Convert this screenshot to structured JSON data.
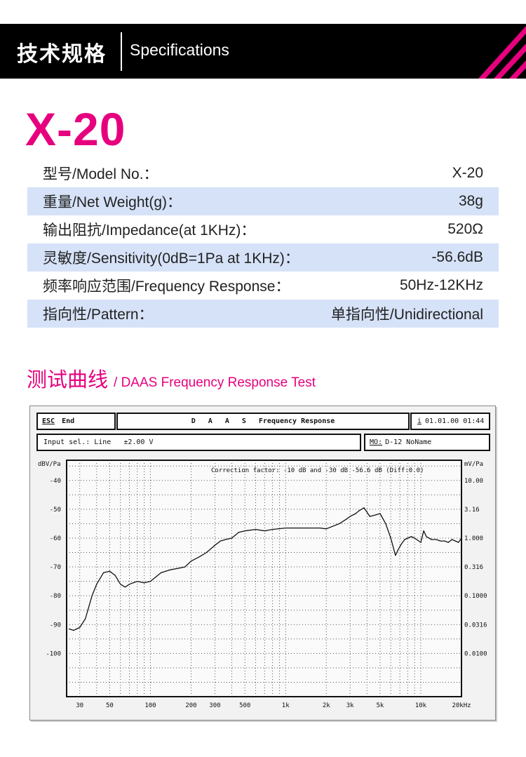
{
  "header": {
    "title_cn": "技术规格",
    "title_en": "Specifications",
    "accent_color": "#e6007e"
  },
  "model": "X-20",
  "specs": [
    {
      "label": "型号/Model No.：",
      "value": "X-20"
    },
    {
      "label": "重量/Net Weight(g)：",
      "value": "38g"
    },
    {
      "label": "输出阻抗/Impedance(at 1KHz)：",
      "value": "520Ω"
    },
    {
      "label": "灵敏度/Sensitivity(0dB=1Pa at 1KHz)：",
      "value": "-56.6dB"
    },
    {
      "label": "频率响应范围/Frequency Response：",
      "value": "50Hz-12KHz"
    },
    {
      "label": "指向性/Pattern：",
      "value": "单指向性/Unidirectional"
    }
  ],
  "test": {
    "title_cn": "测试曲线",
    "title_en": "/ DAAS Frequency Response Test"
  },
  "analyzer": {
    "esc_key": "ESC",
    "esc_label": "End",
    "title_prefix": "D A A S",
    "title": "Frequency Response",
    "date_key": "i",
    "date": "01.01.00 01:44",
    "input_label": "Input sel.: Line",
    "input_value": "±2.00 V",
    "mo_key": "MO:",
    "mo_value": "D-12 NoName",
    "correction": "Correction factor: -10 dB and -30 dB -56.6 dB (Diff:0.0)"
  },
  "chart_data": {
    "type": "line",
    "title": "Frequency Response",
    "xlabel": "",
    "ylabel": "dBV/Pa",
    "ylabel_right": "mV/Pa",
    "x_scale": "log",
    "xlim": [
      24,
      20000
    ],
    "ylim": [
      -115,
      -33
    ],
    "grid": true,
    "x_ticks": [
      30,
      50,
      100,
      200,
      300,
      500,
      1000,
      2000,
      3000,
      5000,
      10000,
      20000
    ],
    "x_tick_labels": [
      "30",
      "50",
      "100",
      "200",
      "300",
      "500",
      "1k",
      "2k",
      "3k",
      "5k",
      "10k",
      "20kHz"
    ],
    "y_ticks": [
      -40,
      -50,
      -60,
      -70,
      -80,
      -90,
      -100
    ],
    "y_tick_labels": [
      "-40",
      "-50",
      "-60",
      "-70",
      "-80",
      "-90",
      "-100"
    ],
    "y_top_label": "dBV/Pa",
    "right_tick_labels": [
      "10.00",
      "3.16",
      "1.000",
      "0.316",
      "0.1000",
      "0.0316",
      "0.0100"
    ],
    "right_top_label": "mV/Pa",
    "series": [
      {
        "x": [
          25,
          27,
          30,
          33,
          37,
          40,
          45,
          50,
          55,
          60,
          65,
          70,
          80,
          90,
          100,
          120,
          140,
          160,
          180,
          200,
          230,
          260,
          300,
          330,
          360,
          400,
          450,
          500,
          600,
          700,
          800,
          1000,
          1200,
          1500,
          1800,
          2000,
          2500,
          2800,
          3000,
          3300,
          3500,
          3800,
          4200,
          4600,
          5000,
          5500,
          6000,
          6500,
          6800,
          7200,
          7600,
          8000,
          8500,
          9000,
          10000,
          10500,
          11000,
          11500,
          12000,
          13000,
          14000,
          15000,
          16000,
          17000,
          18000,
          19000,
          20000
        ],
        "values": [
          -91.5,
          -92,
          -91,
          -88,
          -80,
          -76,
          -72,
          -71.5,
          -73,
          -76,
          -77,
          -76,
          -75,
          -75.5,
          -75,
          -72,
          -71,
          -70.5,
          -70,
          -68,
          -66.5,
          -65,
          -62.5,
          -61,
          -60.5,
          -60,
          -58,
          -57.5,
          -57,
          -57.5,
          -57,
          -56.5,
          -56.5,
          -56.5,
          -56.5,
          -56.8,
          -55,
          -53.5,
          -52.5,
          -51.5,
          -50.5,
          -49.5,
          -52.5,
          -52,
          -51.5,
          -55,
          -60,
          -66,
          -64,
          -62,
          -60.5,
          -60,
          -59.5,
          -60,
          -61.5,
          -57.5,
          -59.5,
          -60,
          -60.5,
          -60.5,
          -61,
          -61,
          -61.5,
          -60.5,
          -61,
          -61.5,
          -60
        ]
      }
    ]
  }
}
